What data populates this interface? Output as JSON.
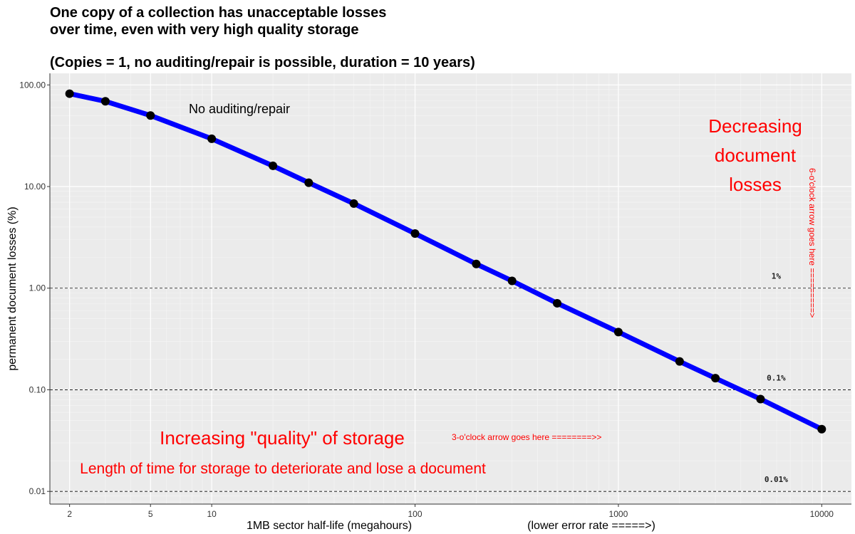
{
  "title_lines": [
    "One copy of a collection has unacceptable losses",
    "over time, even with very high quality storage",
    "(Copies = 1, no auditing/repair is possible, duration = 10 years)"
  ],
  "chart_data": {
    "type": "line",
    "xlabel": "1MB sector half-life (megahours)",
    "xlabel_right": "(lower error rate =====>)",
    "ylabel": "permanent document losses (%)",
    "xscale": "log",
    "yscale": "log",
    "xlim": [
      1.6,
      14000
    ],
    "ylim": [
      0.0075,
      130
    ],
    "x_ticks": [
      2,
      5,
      10,
      100,
      1000,
      10000
    ],
    "x_tick_labels": [
      "2",
      "5",
      "10",
      "100",
      "1000",
      "10000"
    ],
    "y_ticks": [
      0.01,
      0.1,
      1,
      10,
      100
    ],
    "y_tick_labels": [
      "0.01",
      "0.10",
      "1.00",
      "10.00",
      "100.00"
    ],
    "grid": true,
    "background": "#ebebeb",
    "series": [
      {
        "name": "No auditing/repair",
        "color": "#0000ff",
        "marker_color": "#000000",
        "x": [
          2,
          3,
          5,
          10,
          20,
          30,
          50,
          100,
          200,
          300,
          500,
          1000,
          2000,
          3000,
          5000,
          10000
        ],
        "y": [
          82,
          69,
          50,
          29.5,
          16,
          10.9,
          6.8,
          3.45,
          1.73,
          1.18,
          0.71,
          0.37,
          0.19,
          0.13,
          0.081,
          0.041
        ]
      }
    ],
    "reference_lines": [
      {
        "y": 1,
        "label": "1%"
      },
      {
        "y": 0.1,
        "label": "0.1%"
      },
      {
        "y": 0.01,
        "label": "0.01%"
      }
    ],
    "annotations": {
      "series_label": "No auditing/repair",
      "decreasing": [
        "Decreasing",
        "document",
        "losses"
      ],
      "vertical_note": "6-o'clock arrow goes here =========>",
      "horizontal_note": "3-o'clock arrow goes here ========>>",
      "increasing": "Increasing \"quality\" of storage",
      "length": "Length of time for storage to deteriorate and lose a document"
    },
    "annotation_color": "#ff0000"
  }
}
